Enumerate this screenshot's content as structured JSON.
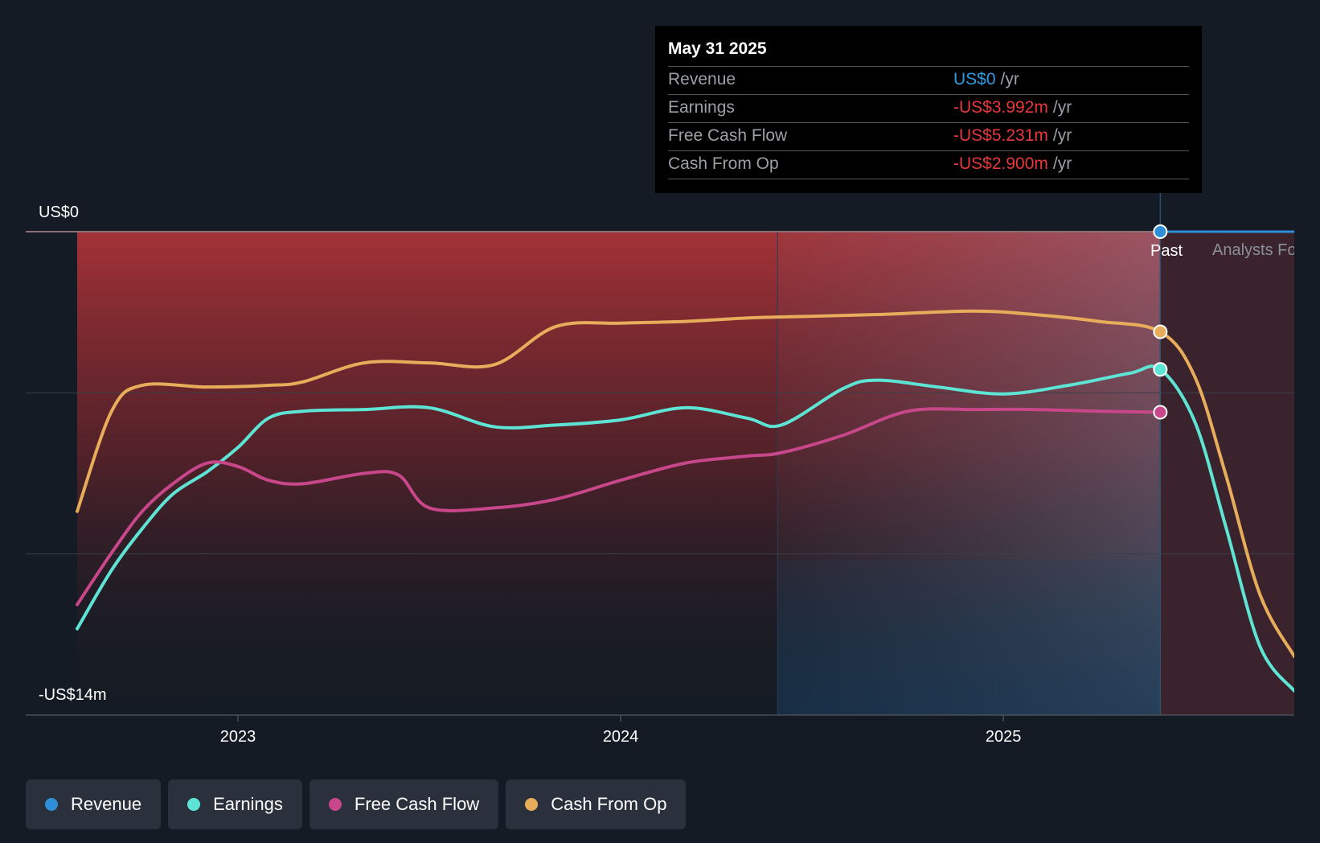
{
  "tooltip": {
    "date": "May 31 2025",
    "rows": [
      {
        "name": "Revenue",
        "value": "US$0",
        "unit": "/yr",
        "color": "#2f9be0"
      },
      {
        "name": "Earnings",
        "value": "-US$3.992m",
        "unit": "/yr",
        "color": "#e8383d"
      },
      {
        "name": "Free Cash Flow",
        "value": "-US$5.231m",
        "unit": "/yr",
        "color": "#e8383d"
      },
      {
        "name": "Cash From Op",
        "value": "-US$2.900m",
        "unit": "/yr",
        "color": "#e8383d"
      }
    ]
  },
  "labels": {
    "past": "Past",
    "analysts": "Analysts Forecasts"
  },
  "legend": [
    {
      "name": "Revenue",
      "color": "#2f8fd8"
    },
    {
      "name": "Earnings",
      "color": "#5ee4d4"
    },
    {
      "name": "Free Cash Flow",
      "color": "#c8468a"
    },
    {
      "name": "Cash From Op",
      "color": "#e8ad5b"
    }
  ],
  "chart_data": {
    "type": "line",
    "title": "",
    "y_axis": {
      "top_label": "US$0",
      "bottom_label": "-US$14m",
      "ylim": [
        -14,
        0
      ],
      "unit": "US$m"
    },
    "x_ticks": [
      {
        "label": "2023",
        "x": 2023.0
      },
      {
        "label": "2024",
        "x": 2024.0
      },
      {
        "label": "2025",
        "x": 2025.0
      }
    ],
    "x_range": [
      2022.58,
      2025.76
    ],
    "past_end": 2025.41,
    "highlight_start": 2024.41,
    "series": [
      {
        "name": "Revenue",
        "color": "#2f8fd8",
        "points": [
          [
            2025.41,
            0.0
          ],
          [
            2025.76,
            0.0
          ]
        ]
      },
      {
        "name": "Cash From Op",
        "color": "#e8ad5b",
        "points": [
          [
            2022.58,
            -8.1
          ],
          [
            2022.67,
            -5.2
          ],
          [
            2022.75,
            -4.45
          ],
          [
            2022.92,
            -4.5
          ],
          [
            2023.08,
            -4.45
          ],
          [
            2023.17,
            -4.35
          ],
          [
            2023.33,
            -3.8
          ],
          [
            2023.5,
            -3.8
          ],
          [
            2023.67,
            -3.85
          ],
          [
            2023.83,
            -2.75
          ],
          [
            2024.0,
            -2.65
          ],
          [
            2024.17,
            -2.6
          ],
          [
            2024.33,
            -2.5
          ],
          [
            2024.5,
            -2.45
          ],
          [
            2024.67,
            -2.4
          ],
          [
            2024.92,
            -2.3
          ],
          [
            2025.08,
            -2.4
          ],
          [
            2025.25,
            -2.6
          ],
          [
            2025.41,
            -2.9
          ],
          [
            2025.5,
            -4.2
          ],
          [
            2025.58,
            -7.0
          ],
          [
            2025.67,
            -10.5
          ],
          [
            2025.76,
            -12.3
          ]
        ]
      },
      {
        "name": "Earnings",
        "color": "#5ee4d4",
        "points": [
          [
            2022.58,
            -11.5
          ],
          [
            2022.67,
            -9.8
          ],
          [
            2022.75,
            -8.6
          ],
          [
            2022.83,
            -7.6
          ],
          [
            2022.92,
            -6.95
          ],
          [
            2023.0,
            -6.25
          ],
          [
            2023.08,
            -5.4
          ],
          [
            2023.17,
            -5.2
          ],
          [
            2023.33,
            -5.15
          ],
          [
            2023.5,
            -5.1
          ],
          [
            2023.67,
            -5.65
          ],
          [
            2023.83,
            -5.6
          ],
          [
            2024.0,
            -5.45
          ],
          [
            2024.17,
            -5.1
          ],
          [
            2024.33,
            -5.4
          ],
          [
            2024.42,
            -5.6
          ],
          [
            2024.58,
            -4.55
          ],
          [
            2024.67,
            -4.3
          ],
          [
            2024.83,
            -4.5
          ],
          [
            2025.0,
            -4.7
          ],
          [
            2025.17,
            -4.45
          ],
          [
            2025.33,
            -4.1
          ],
          [
            2025.41,
            -3.99
          ],
          [
            2025.5,
            -5.5
          ],
          [
            2025.58,
            -8.5
          ],
          [
            2025.67,
            -12.0
          ],
          [
            2025.76,
            -13.3
          ]
        ]
      },
      {
        "name": "Free Cash Flow",
        "color": "#c8468a",
        "points": [
          [
            2022.58,
            -10.8
          ],
          [
            2022.67,
            -9.3
          ],
          [
            2022.75,
            -8.1
          ],
          [
            2022.83,
            -7.3
          ],
          [
            2022.92,
            -6.7
          ],
          [
            2023.0,
            -6.8
          ],
          [
            2023.08,
            -7.2
          ],
          [
            2023.17,
            -7.3
          ],
          [
            2023.33,
            -7.0
          ],
          [
            2023.42,
            -7.05
          ],
          [
            2023.5,
            -8.0
          ],
          [
            2023.67,
            -8.0
          ],
          [
            2023.83,
            -7.75
          ],
          [
            2024.0,
            -7.2
          ],
          [
            2024.17,
            -6.7
          ],
          [
            2024.33,
            -6.5
          ],
          [
            2024.42,
            -6.4
          ],
          [
            2024.58,
            -5.9
          ],
          [
            2024.75,
            -5.2
          ],
          [
            2024.92,
            -5.15
          ],
          [
            2025.08,
            -5.15
          ],
          [
            2025.25,
            -5.2
          ],
          [
            2025.41,
            -5.23
          ]
        ]
      }
    ]
  }
}
